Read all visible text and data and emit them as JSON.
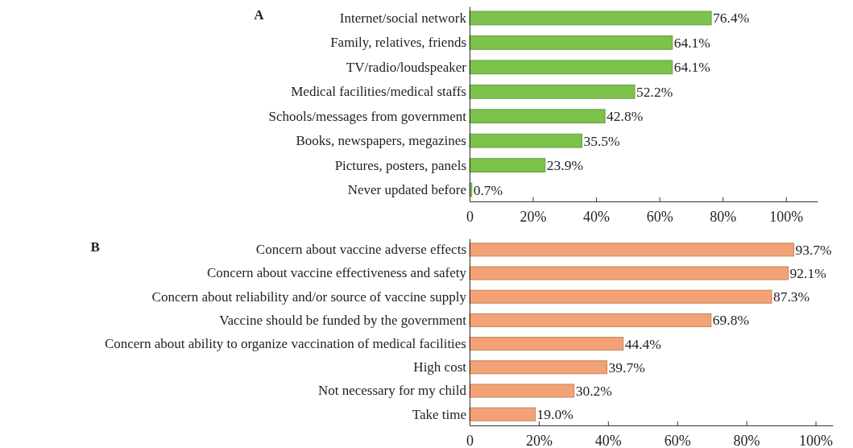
{
  "chart_data": [
    {
      "type": "bar",
      "title": "A",
      "orientation": "horizontal",
      "categories": [
        "Internet/social network",
        "Family, relatives, friends",
        "TV/radio/loudspeaker",
        "Medical facilities/medical staffs",
        "Schools/messages from government",
        "Books, newspapers, megazines",
        "Pictures, posters, panels",
        "Never updated before"
      ],
      "series": [
        {
          "color": "#7dc24b",
          "values": [
            76.4,
            64.1,
            64.1,
            52.2,
            42.8,
            35.5,
            23.9,
            0.7
          ],
          "value_labels": [
            "76.4%",
            "64.1%",
            "64.1%",
            "52.2%",
            "42.8%",
            "35.5%",
            "23.9%",
            "0.7%"
          ]
        }
      ],
      "xlim": [
        0,
        110
      ],
      "xticks": [
        {
          "value": 0,
          "label": "0"
        },
        {
          "value": 20,
          "label": "20%"
        },
        {
          "value": 40,
          "label": "40%"
        },
        {
          "value": 60,
          "label": "60%"
        },
        {
          "value": 80,
          "label": "80%"
        },
        {
          "value": 100,
          "label": "100%"
        }
      ],
      "grid": false
    },
    {
      "type": "bar",
      "title": "B",
      "orientation": "horizontal",
      "categories": [
        "Concern about vaccine adverse effects",
        "Concern about vaccine effectiveness and safety",
        "Concern about reliability and/or source of vaccine supply",
        "Vaccine should be funded by the government",
        "Concern about ability to organize vaccination of medical facilities",
        "High cost",
        "Not necessary for my child",
        "Take time"
      ],
      "series": [
        {
          "color": "#f2a274",
          "values": [
            93.7,
            92.1,
            87.3,
            69.8,
            44.4,
            39.7,
            30.2,
            19.0
          ],
          "value_labels": [
            "93.7%",
            "92.1%",
            "87.3%",
            "69.8%",
            "44.4%",
            "39.7%",
            "30.2%",
            "19.0%"
          ]
        }
      ],
      "xlim": [
        0,
        105
      ],
      "xticks": [
        {
          "value": 0,
          "label": "0"
        },
        {
          "value": 20,
          "label": "20%"
        },
        {
          "value": 40,
          "label": "40%"
        },
        {
          "value": 60,
          "label": "60%"
        },
        {
          "value": 80,
          "label": "80%"
        },
        {
          "value": 100,
          "label": "100%"
        }
      ],
      "grid": false
    }
  ]
}
